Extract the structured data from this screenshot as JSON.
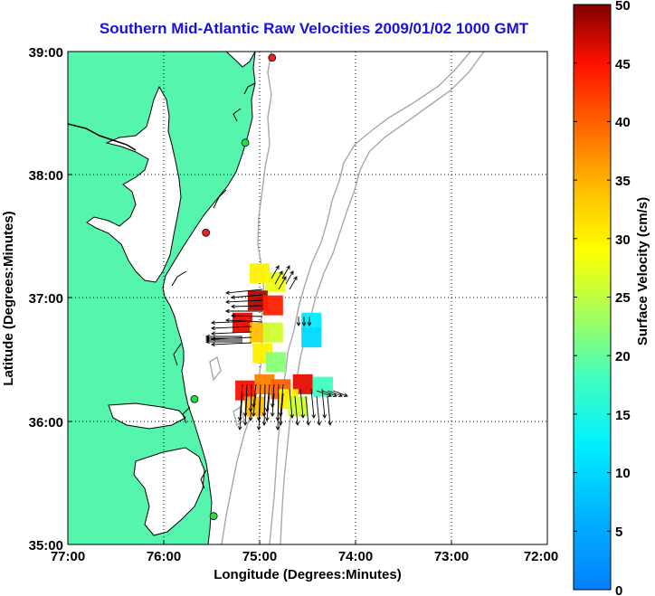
{
  "title": "Southern Mid-Atlantic Raw Velocities 2009/01/02 1000 GMT",
  "xlabel": "Longitude (Degrees:Minutes)",
  "ylabel": "Latitude (Degrees:Minutes)",
  "xticks": [
    "77:00",
    "76:00",
    "75:00",
    "74:00",
    "73:00",
    "72:00"
  ],
  "yticks": [
    "39:00",
    "38:00",
    "37:00",
    "36:00",
    "35:00"
  ],
  "colorbar": {
    "label": "Surface Velocity (cm/s)",
    "ticks": [
      "50",
      "45",
      "40",
      "35",
      "30",
      "25",
      "20",
      "15",
      "10",
      "5",
      "0"
    ],
    "range": [
      0,
      50
    ],
    "colormap": "jet"
  },
  "colors": {
    "land": "#55f5ad",
    "water": "#ffffff",
    "coast": "#000000",
    "bathymetry": "#a8a8a8",
    "title": "#1a10e0",
    "site_active": "#22dd44",
    "site_inactive": "#ee2222"
  },
  "sites": [
    {
      "status": "inactive",
      "lon": -74.87,
      "lat": 38.95
    },
    {
      "status": "active",
      "lon": -75.15,
      "lat": 38.26
    },
    {
      "status": "inactive",
      "lon": -75.56,
      "lat": 37.53
    },
    {
      "status": "active",
      "lon": -75.68,
      "lat": 36.18
    },
    {
      "status": "active",
      "lon": -75.48,
      "lat": 35.23
    }
  ],
  "chart_data": {
    "type": "heatmap",
    "title": "Southern Mid-Atlantic Raw Velocities 2009/01/02 1000 GMT",
    "xlabel": "Longitude (Degrees:Minutes)",
    "ylabel": "Latitude (Degrees:Minutes)",
    "xlim": [
      -77,
      -72
    ],
    "ylim": [
      35,
      39
    ],
    "velocity_units": "cm/s",
    "patches": [
      {
        "lon": -75.0,
        "lat": 37.2,
        "speed": 30
      },
      {
        "lon": -74.84,
        "lat": 37.13,
        "speed": 28
      },
      {
        "lon": -75.02,
        "lat": 36.98,
        "speed": 48
      },
      {
        "lon": -74.86,
        "lat": 36.94,
        "speed": 44
      },
      {
        "lon": -75.18,
        "lat": 36.8,
        "speed": 46
      },
      {
        "lon": -75.0,
        "lat": 36.72,
        "speed": 34
      },
      {
        "lon": -74.86,
        "lat": 36.72,
        "speed": 26
      },
      {
        "lon": -74.46,
        "lat": 36.8,
        "speed": 12
      },
      {
        "lon": -74.46,
        "lat": 36.68,
        "speed": 10
      },
      {
        "lon": -74.97,
        "lat": 36.55,
        "speed": 30
      },
      {
        "lon": -74.83,
        "lat": 36.48,
        "speed": 22
      },
      {
        "lon": -75.15,
        "lat": 36.25,
        "speed": 45
      },
      {
        "lon": -74.95,
        "lat": 36.3,
        "speed": 38
      },
      {
        "lon": -74.78,
        "lat": 36.26,
        "speed": 40
      },
      {
        "lon": -74.55,
        "lat": 36.3,
        "speed": 46
      },
      {
        "lon": -74.34,
        "lat": 36.28,
        "speed": 18
      },
      {
        "lon": -74.7,
        "lat": 36.18,
        "speed": 30
      },
      {
        "lon": -75.05,
        "lat": 36.12,
        "speed": 34
      },
      {
        "lon": -74.6,
        "lat": 36.12,
        "speed": 26
      }
    ]
  }
}
